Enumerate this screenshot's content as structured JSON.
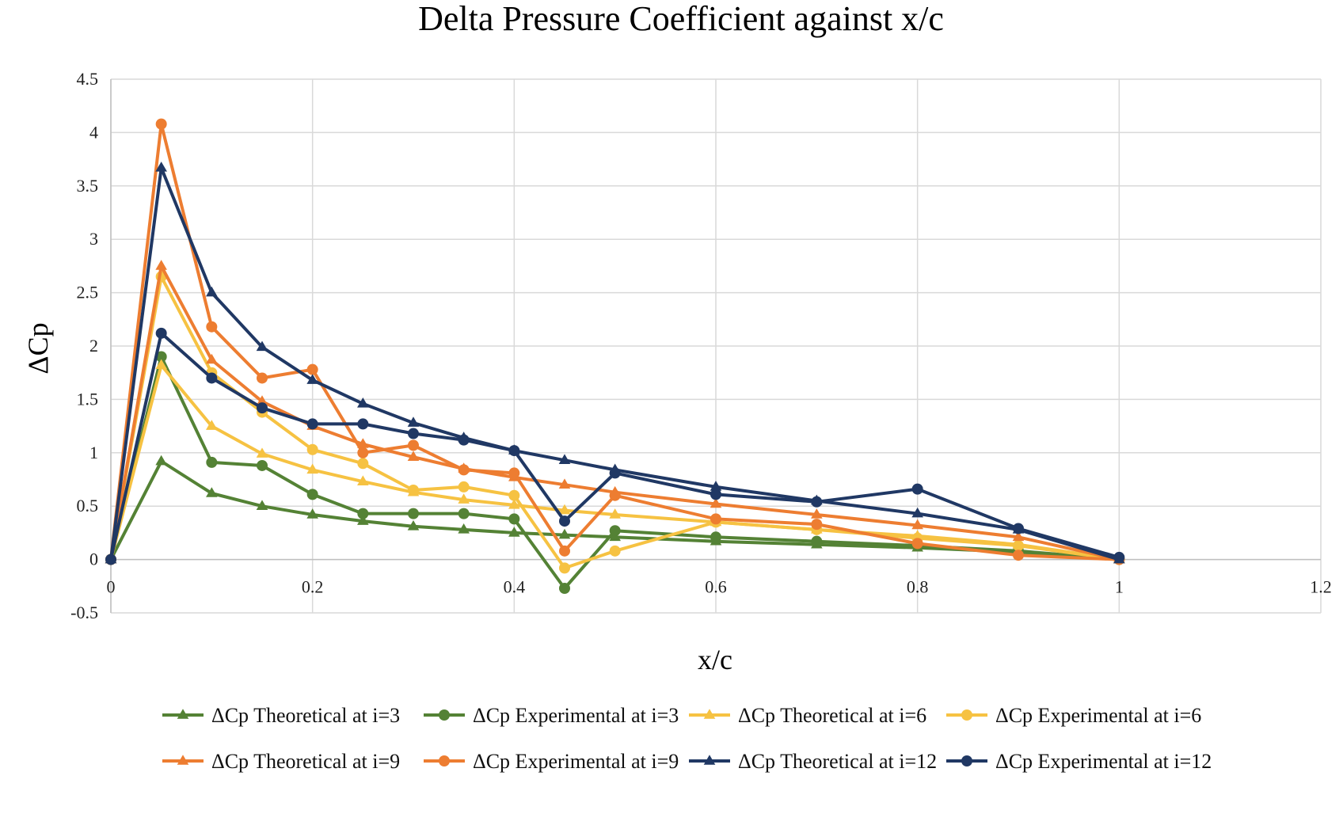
{
  "chart_data": {
    "type": "line",
    "title": "Delta Pressure Coefficient against x/c",
    "xlabel": "x/c",
    "ylabel": "ΔCp",
    "xlim": [
      0,
      1.2
    ],
    "ylim": [
      -0.5,
      4.5
    ],
    "xticks": [
      0,
      0.2,
      0.4,
      0.6,
      0.8,
      1,
      1.2
    ],
    "xtick_labels": [
      "0",
      "0.2",
      "0.4",
      "0.6",
      "0.8",
      "1",
      "1.2"
    ],
    "yticks": [
      -0.5,
      0,
      0.5,
      1,
      1.5,
      2,
      2.5,
      3,
      3.5,
      4,
      4.5
    ],
    "ytick_labels": [
      "-0.5",
      "0",
      "0.5",
      "1",
      "1.5",
      "2",
      "2.5",
      "3",
      "3.5",
      "4",
      "4.5"
    ],
    "grid": true,
    "legend_position": "bottom",
    "series": [
      {
        "name": "ΔCp Theoretical at i=3",
        "color": "#548235",
        "marker": "triangle",
        "x": [
          0,
          0.05,
          0.1,
          0.15,
          0.2,
          0.25,
          0.3,
          0.35,
          0.4,
          0.45,
          0.5,
          0.6,
          0.7,
          0.8,
          0.9,
          1
        ],
        "y": [
          0,
          0.92,
          0.62,
          0.5,
          0.42,
          0.36,
          0.31,
          0.28,
          0.25,
          0.23,
          0.21,
          0.17,
          0.14,
          0.11,
          0.07,
          0
        ]
      },
      {
        "name": "ΔCp Experimental at i=3",
        "color": "#548235",
        "marker": "circle",
        "x": [
          0,
          0.05,
          0.1,
          0.15,
          0.2,
          0.25,
          0.3,
          0.35,
          0.4,
          0.45,
          0.5,
          0.6,
          0.7,
          0.8,
          0.9,
          1
        ],
        "y": [
          0,
          1.9,
          0.91,
          0.88,
          0.61,
          0.43,
          0.43,
          0.43,
          0.38,
          -0.27,
          0.27,
          0.21,
          0.17,
          0.13,
          0.08,
          0
        ]
      },
      {
        "name": "ΔCp Theoretical at i=6",
        "color": "#f6c242",
        "marker": "triangle",
        "x": [
          0,
          0.05,
          0.1,
          0.15,
          0.2,
          0.25,
          0.3,
          0.35,
          0.4,
          0.45,
          0.5,
          0.6,
          0.7,
          0.8,
          0.9,
          1
        ],
        "y": [
          0,
          1.82,
          1.25,
          0.99,
          0.84,
          0.73,
          0.63,
          0.56,
          0.51,
          0.46,
          0.42,
          0.35,
          0.28,
          0.22,
          0.14,
          0
        ]
      },
      {
        "name": "ΔCp Experimental at i=6",
        "color": "#f6c242",
        "marker": "circle",
        "x": [
          0,
          0.05,
          0.1,
          0.15,
          0.2,
          0.25,
          0.3,
          0.35,
          0.4,
          0.45,
          0.5,
          0.6,
          0.7,
          0.8,
          0.9,
          1
        ],
        "y": [
          0,
          2.65,
          1.75,
          1.38,
          1.03,
          0.9,
          0.65,
          0.68,
          0.6,
          -0.08,
          0.08,
          0.35,
          0.28,
          0.2,
          0.13,
          0
        ]
      },
      {
        "name": "ΔCp Theoretical at i=9",
        "color": "#ed7d31",
        "marker": "triangle",
        "x": [
          0,
          0.05,
          0.1,
          0.15,
          0.2,
          0.25,
          0.3,
          0.35,
          0.4,
          0.45,
          0.5,
          0.6,
          0.7,
          0.8,
          0.9,
          1
        ],
        "y": [
          0,
          2.75,
          1.87,
          1.48,
          1.25,
          1.08,
          0.96,
          0.85,
          0.77,
          0.7,
          0.63,
          0.52,
          0.42,
          0.32,
          0.21,
          0
        ]
      },
      {
        "name": "ΔCp Experimental at i=9",
        "color": "#ed7d31",
        "marker": "circle",
        "x": [
          0,
          0.05,
          0.1,
          0.15,
          0.2,
          0.25,
          0.3,
          0.35,
          0.4,
          0.45,
          0.5,
          0.6,
          0.7,
          0.8,
          0.9,
          1
        ],
        "y": [
          0,
          4.08,
          2.18,
          1.7,
          1.78,
          1.0,
          1.07,
          0.84,
          0.81,
          0.08,
          0.6,
          0.38,
          0.33,
          0.15,
          0.04,
          0
        ]
      },
      {
        "name": "ΔCp Theoretical at i=12",
        "color": "#203864",
        "marker": "triangle",
        "x": [
          0,
          0.05,
          0.1,
          0.15,
          0.2,
          0.25,
          0.3,
          0.35,
          0.4,
          0.45,
          0.5,
          0.6,
          0.7,
          0.8,
          0.9,
          1
        ],
        "y": [
          0,
          3.67,
          2.5,
          1.99,
          1.68,
          1.46,
          1.28,
          1.14,
          1.02,
          0.93,
          0.84,
          0.68,
          0.55,
          0.43,
          0.28,
          0
        ]
      },
      {
        "name": "ΔCp Experimental at i=12",
        "color": "#203864",
        "marker": "circle",
        "x": [
          0,
          0.05,
          0.1,
          0.15,
          0.2,
          0.25,
          0.3,
          0.35,
          0.4,
          0.45,
          0.5,
          0.6,
          0.7,
          0.8,
          0.9,
          1
        ],
        "y": [
          0,
          2.12,
          1.7,
          1.42,
          1.27,
          1.27,
          1.18,
          1.12,
          1.02,
          0.36,
          0.81,
          0.61,
          0.54,
          0.66,
          0.29,
          0.02
        ]
      }
    ]
  }
}
